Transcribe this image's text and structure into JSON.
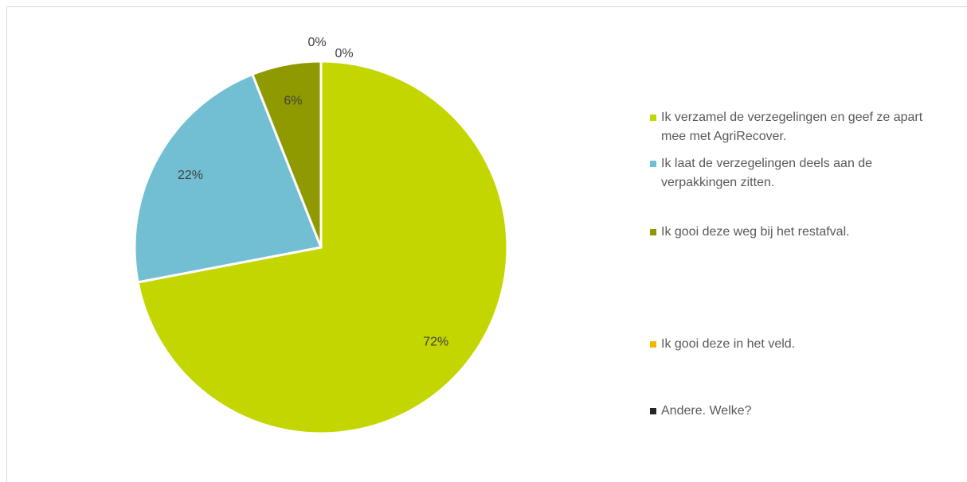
{
  "chart_data": {
    "type": "pie",
    "categories": [
      "Ik verzamel de verzegelingen en geef ze apart mee met AgriRecover.",
      "Ik laat de verzegelingen deels aan de verpakkingen zitten.",
      "Ik gooi deze weg bij het restafval.",
      "Ik gooi deze in het veld.",
      "Andere. Welke?"
    ],
    "values": [
      72,
      22,
      6,
      0,
      0
    ],
    "value_labels": [
      "72%",
      "22%",
      "6%",
      "0%",
      "0%"
    ],
    "colors": [
      "#c3d600",
      "#72bfd3",
      "#8f9a00",
      "#f5b700",
      "#2b2323"
    ],
    "legend": "right"
  }
}
